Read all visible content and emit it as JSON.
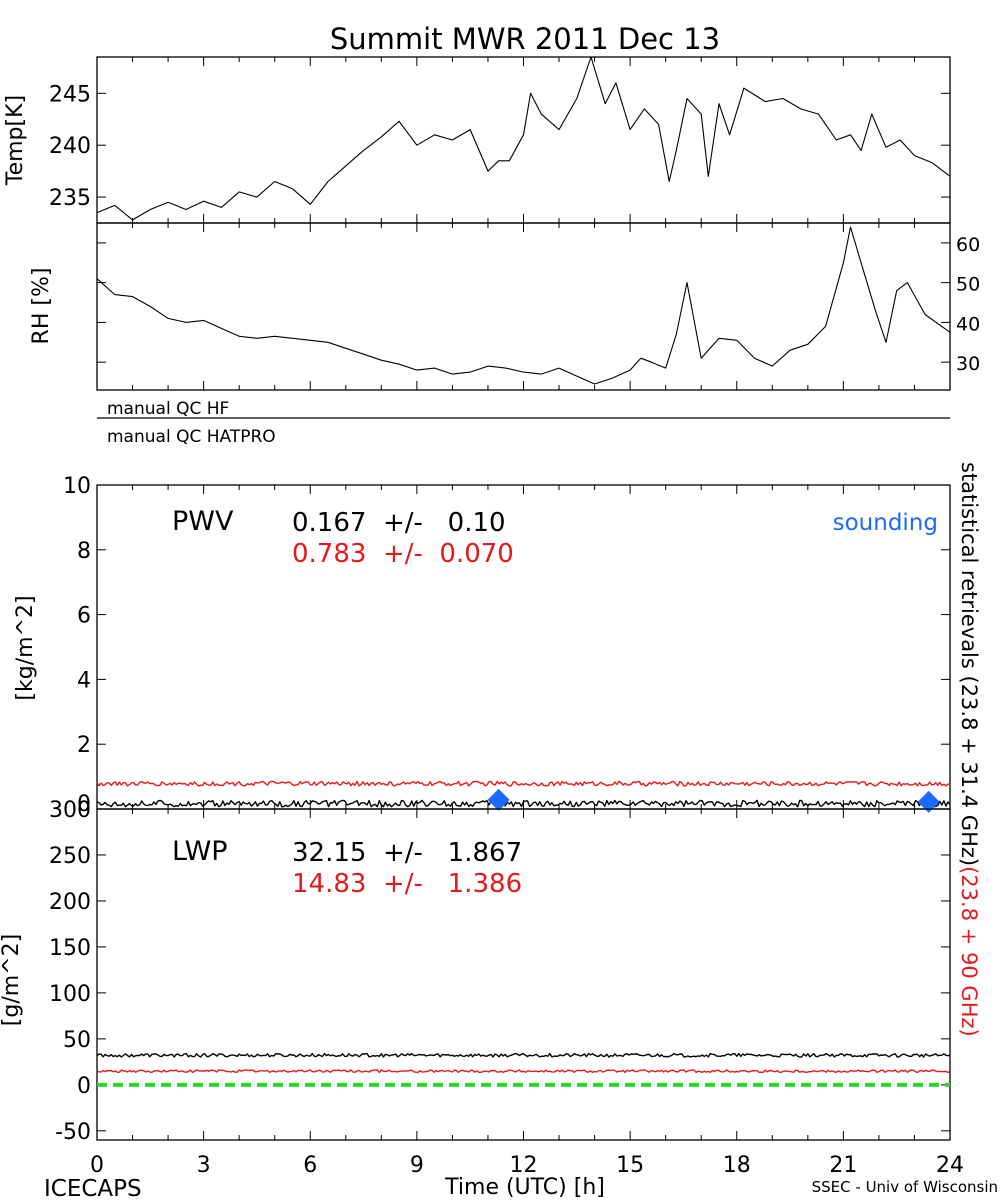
{
  "title": "Summit MWR 2011 Dec 13",
  "footer": {
    "left": "ICECAPS",
    "right": "SSEC - Univ of Wisconsin"
  },
  "qc": {
    "hf_label": "manual  QC  HF",
    "hatpro_label": "manual  QC  HATPRO"
  },
  "right_annotation": {
    "black_text": "statistical retrievals (23.8 + 31.4 GHz)",
    "red_text": "(23.8 + 90 GHz)",
    "black_color": "#000000",
    "red_color": "#e41a1a"
  },
  "colors": {
    "primary": "#000000",
    "secondary": "#e41a1a",
    "sounding": "#1a6aff",
    "zero_line": "#22dd22"
  },
  "chart_data": [
    {
      "id": "temp",
      "type": "line",
      "ylabel": "Temp[K]",
      "ylim": [
        232.5,
        248.5
      ],
      "xlim": [
        0,
        24
      ],
      "yticks": [
        235,
        240,
        245
      ],
      "y_tick_labels": [
        "235",
        "240",
        "245"
      ],
      "series": [
        {
          "color": "#000000",
          "x": [
            0,
            0.5,
            1.0,
            1.5,
            2.0,
            2.5,
            3.0,
            3.5,
            4.0,
            4.5,
            5.0,
            5.5,
            6.0,
            6.5,
            7.0,
            7.5,
            8.0,
            8.5,
            9.0,
            9.5,
            10.0,
            10.5,
            11.0,
            11.3,
            11.6,
            12.0,
            12.2,
            12.5,
            13.0,
            13.5,
            13.9,
            14.3,
            14.6,
            15.0,
            15.4,
            15.8,
            16.1,
            16.3,
            16.6,
            17.0,
            17.2,
            17.5,
            17.8,
            18.2,
            18.8,
            19.3,
            19.8,
            20.3,
            20.8,
            21.2,
            21.5,
            21.8,
            22.2,
            22.6,
            23.0,
            23.5,
            24.0
          ],
          "y": [
            233.5,
            234.2,
            232.8,
            233.8,
            234.5,
            233.8,
            234.6,
            234.0,
            235.5,
            235.0,
            236.5,
            235.8,
            234.3,
            236.5,
            238.0,
            239.5,
            240.8,
            242.3,
            240.0,
            241.0,
            240.5,
            241.5,
            237.5,
            238.5,
            238.5,
            241.0,
            245.0,
            243.0,
            241.5,
            244.5,
            248.5,
            244.0,
            246.0,
            241.5,
            243.5,
            242.0,
            236.5,
            239.5,
            244.5,
            243.0,
            237.0,
            244.0,
            241.0,
            245.5,
            244.2,
            244.5,
            243.5,
            243.0,
            240.5,
            241.0,
            239.5,
            243.0,
            239.8,
            240.5,
            239.0,
            238.3,
            237.0
          ]
        }
      ]
    },
    {
      "id": "rh",
      "type": "line",
      "ylabel": "RH [%]",
      "ylim": [
        23,
        65
      ],
      "xlim": [
        0,
        24
      ],
      "yticks": [
        30,
        40,
        50,
        60
      ],
      "y_tick_labels": [
        "30",
        "40",
        "50",
        "60"
      ],
      "series": [
        {
          "color": "#000000",
          "x": [
            0,
            0.5,
            1.0,
            1.5,
            2.0,
            2.5,
            3.0,
            3.5,
            4.0,
            4.5,
            5.0,
            5.5,
            6.0,
            6.5,
            7.0,
            7.5,
            8.0,
            8.5,
            9.0,
            9.5,
            10.0,
            10.5,
            11.0,
            11.5,
            12.0,
            12.5,
            13.0,
            13.5,
            14.0,
            14.5,
            15.0,
            15.3,
            15.6,
            16.0,
            16.3,
            16.6,
            17.0,
            17.5,
            18.0,
            18.5,
            19.0,
            19.5,
            20.0,
            20.5,
            21.0,
            21.2,
            21.5,
            21.9,
            22.2,
            22.5,
            22.8,
            23.3,
            24.0
          ],
          "y": [
            51.0,
            47.0,
            46.5,
            44.0,
            41.0,
            40.0,
            40.5,
            38.5,
            36.5,
            36.0,
            36.5,
            36.0,
            35.5,
            35.0,
            33.5,
            32.0,
            30.5,
            29.5,
            28.0,
            28.5,
            27.0,
            27.5,
            29.0,
            28.5,
            27.5,
            27.0,
            28.5,
            26.5,
            24.5,
            26.0,
            28.0,
            31.0,
            30.0,
            28.5,
            37.0,
            50.0,
            31.0,
            36.0,
            35.5,
            31.0,
            29.0,
            33.0,
            34.5,
            39.0,
            55.0,
            64.0,
            55.0,
            43.0,
            35.0,
            48.0,
            50.0,
            42.0,
            37.5
          ]
        }
      ]
    },
    {
      "id": "pwv",
      "type": "line",
      "ylabel": "[kg/m^2]",
      "ylim": [
        0,
        10
      ],
      "xlim": [
        0,
        24
      ],
      "yticks": [
        0,
        2,
        4,
        6,
        8,
        10
      ],
      "y_tick_labels": [
        "0",
        "2",
        "4",
        "6",
        "8",
        "10"
      ],
      "annotation": {
        "name": "PWV",
        "black_value": "0.167  +/-   0.10",
        "red_value": "0.783  +/-  0.070",
        "legend_label": "sounding"
      },
      "series": [
        {
          "color": "#000000",
          "mean": 0.167,
          "noise": 0.1
        },
        {
          "color": "#e41a1a",
          "mean": 0.783,
          "noise": 0.07
        }
      ],
      "sounding_points": {
        "x": [
          11.3,
          23.4
        ],
        "y": [
          0.28,
          0.22
        ],
        "color": "#1a6aff"
      }
    },
    {
      "id": "lwp",
      "type": "line",
      "ylabel": "[g/m^2]",
      "xlabel": "Time (UTC) [h]",
      "ylim": [
        -60,
        300
      ],
      "xlim": [
        0,
        24
      ],
      "yticks": [
        -50,
        0,
        50,
        100,
        150,
        200,
        250,
        300
      ],
      "y_tick_labels": [
        "-50",
        "0",
        "50",
        "100",
        "150",
        "200",
        "250",
        "300"
      ],
      "xticks": [
        0,
        3,
        6,
        9,
        12,
        15,
        18,
        21,
        24
      ],
      "x_tick_labels": [
        "0",
        "3",
        "6",
        "9",
        "12",
        "15",
        "18",
        "21",
        "24"
      ],
      "annotation": {
        "name": "LWP",
        "black_value": "32.15  +/-   1.867",
        "red_value": "14.83  +/-   1.386"
      },
      "series": [
        {
          "color": "#000000",
          "mean": 32.15,
          "noise": 1.867
        },
        {
          "color": "#e41a1a",
          "mean": 14.83,
          "noise": 1.386
        }
      ],
      "zero_line": {
        "y": 0,
        "color": "#22dd22",
        "style": "dashed"
      }
    }
  ]
}
